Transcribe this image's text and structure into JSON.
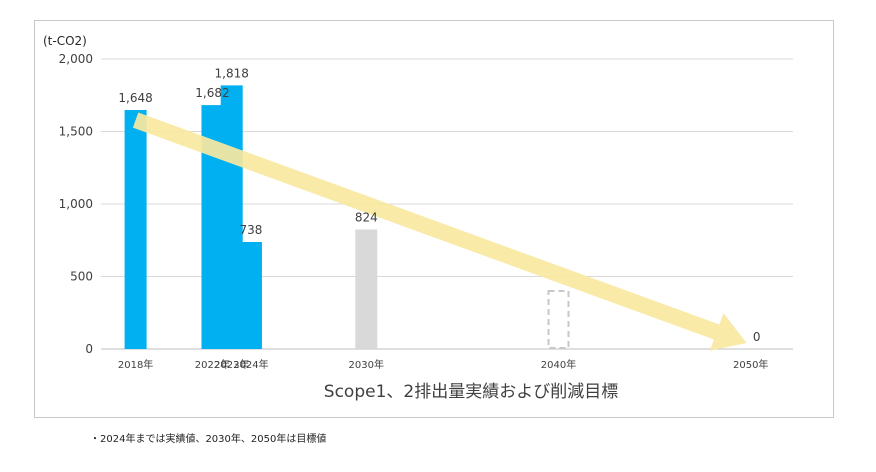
{
  "chart_data": {
    "type": "bar",
    "title": "Scope1、2排出量実績および削減目標",
    "ylabel": "(t-CO2)",
    "xlabel": "",
    "ylim": [
      0,
      2000
    ],
    "yticks": [
      0,
      500,
      1000,
      1500,
      2000
    ],
    "ytick_labels": [
      "0",
      "500",
      "1,000",
      "1,500",
      "2,000"
    ],
    "x_positions": [
      2018,
      2022,
      2023,
      2024,
      2030,
      2040,
      2050
    ],
    "categories": [
      "2018年",
      "2022年",
      "2023年",
      "2024年",
      "2030年",
      "2040年",
      "2050年"
    ],
    "values": [
      1648,
      1682,
      1818,
      738,
      824,
      400,
      0
    ],
    "value_labels": [
      "1,648",
      "1,682",
      "1,818",
      "738",
      "824",
      "",
      "0"
    ],
    "bar_styles": [
      "actual",
      "actual",
      "actual",
      "actual",
      "target",
      "outline",
      "none"
    ],
    "grid": true,
    "trend_arrow": {
      "from_year": 2018,
      "from_value": 1648,
      "to_year": 2050,
      "to_value": 0
    }
  },
  "colors": {
    "actual": "#00b0f0",
    "target": "#d9d9d9",
    "outline": "#c8c8c8",
    "arrow": "#f8e8a0",
    "grid": "#d9d9d9",
    "axis": "#bfbfbf",
    "text": "#404040"
  },
  "footnote": "・2024年までは実績値、2030年、2050年は目標値"
}
